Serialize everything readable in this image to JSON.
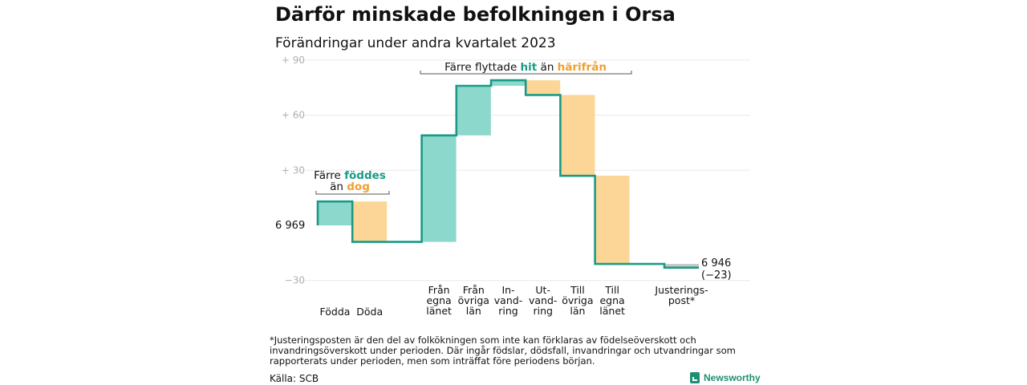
{
  "title": "Därför minskade befolkningen i Orsa",
  "subtitle": "Förändringar under andra kvartalet 2023",
  "footnote": "*Justeringsposten är den del av folkökningen som inte kan förklaras av födelseöverskott och invandringsöverskott under perioden. Där ingår födslar, dödsfall, invandringar och utvandringar som rapporterats under perioden, men som inträffat före periodens början.",
  "source": "Källa: SCB",
  "logo_text": "Newsworthy",
  "colors": {
    "increase": "#8dd8cc",
    "decrease": "#fbd696",
    "line": "#1a9a86",
    "adjust": "#c8c8c8",
    "teal_text": "#1a9a86",
    "orange_text": "#f0a030",
    "axis": "#b5b5b5",
    "tick_text": "#b0b0b0"
  },
  "chart_data": {
    "type": "waterfall",
    "start_value": 6969,
    "start_label": "6 969",
    "end_label_value": "6 946",
    "end_label_change": "(−23)",
    "y_ticks": [
      "+ 90",
      "+ 60",
      "+ 30",
      "−30"
    ],
    "ylim": [
      -33,
      95
    ],
    "categories": [
      {
        "label": [
          "Födda"
        ],
        "change": 13,
        "kind": "increase"
      },
      {
        "label": [
          "Döda"
        ],
        "change": -22,
        "kind": "decrease"
      },
      {
        "label": [
          "Från",
          "egna",
          "länet"
        ],
        "change": 58,
        "kind": "increase"
      },
      {
        "label": [
          "Från",
          "övriga",
          "län"
        ],
        "change": 27,
        "kind": "increase"
      },
      {
        "label": [
          "In-",
          "vand-",
          "ring"
        ],
        "change": 3,
        "kind": "increase"
      },
      {
        "label": [
          "Ut-",
          "vand-",
          "ring"
        ],
        "change": -8,
        "kind": "decrease"
      },
      {
        "label": [
          "Till",
          "övriga",
          "län"
        ],
        "change": -44,
        "kind": "decrease"
      },
      {
        "label": [
          "Till",
          "egna",
          "länet"
        ],
        "change": -48,
        "kind": "decrease"
      },
      {
        "label": [
          "Justerings-",
          "post*"
        ],
        "change": -2,
        "kind": "adjust"
      }
    ],
    "annotations": [
      {
        "lines": [
          [
            "Färre ",
            "födde",
            "s"
          ],
          [
            "än ",
            "dog",
            ""
          ]
        ],
        "parts": {
          "prefix1": "Färre ",
          "teal": "föddes",
          "prefix2": "än ",
          "orange": "dog"
        }
      },
      {
        "prefix": "Färre flyttade ",
        "teal": "hit",
        "middle": " än ",
        "orange": "härifrån"
      }
    ]
  }
}
